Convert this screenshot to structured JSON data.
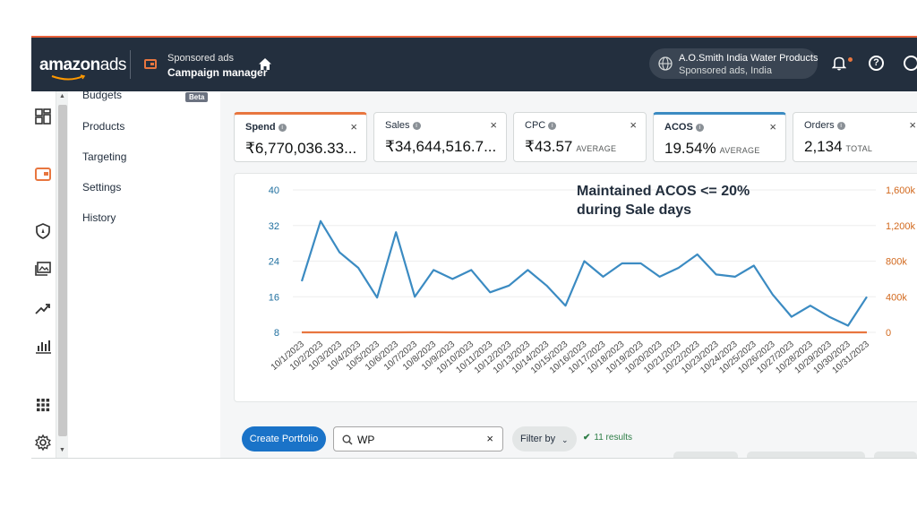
{
  "topbar": {
    "logo_main": "amazon",
    "logo_ads": "ads",
    "campaign_sub": "Sponsored ads",
    "campaign_title": "Campaign manager",
    "account_name": "A.O.Smith India Water Products",
    "account_sub": "Sponsored ads, India",
    "help_glyph": "?"
  },
  "rail": {
    "icons": [
      "dashboard-icon",
      "campaign-manager-icon",
      "shield-icon",
      "media-icon",
      "trend-icon",
      "bar-chart-icon",
      "apps-grid-icon",
      "settings-gear-icon"
    ],
    "scroll_up": "▲",
    "scroll_down": "▼"
  },
  "sidemenu": {
    "items": [
      "Budgets",
      "Products",
      "Targeting",
      "Settings",
      "History"
    ],
    "beta": "Beta"
  },
  "metrics": [
    {
      "name": "Spend",
      "value": "₹6,770,036.33...",
      "unit": "",
      "accent": "#e8763f"
    },
    {
      "name": "Sales",
      "value": "₹34,644,516.7...",
      "unit": "",
      "accent": ""
    },
    {
      "name": "CPC",
      "value": "₹43.57",
      "unit": "AVERAGE",
      "accent": ""
    },
    {
      "name": "ACOS",
      "value": "19.54%",
      "unit": "AVERAGE",
      "accent": "#3b8bc2"
    },
    {
      "name": "Orders",
      "value": "2,134",
      "unit": "TOTAL",
      "accent": ""
    }
  ],
  "metric_close": "×",
  "metric_info": "i",
  "annotation": {
    "line1": "Maintained ACOS <= 20%",
    "line2": "during Sale days"
  },
  "chart_data": {
    "type": "line",
    "x": [
      "10/1/2023",
      "10/2/2023",
      "10/3/2023",
      "10/4/2023",
      "10/5/2023",
      "10/6/2023",
      "10/7/2023",
      "10/8/2023",
      "10/9/2023",
      "10/10/2023",
      "10/11/2023",
      "10/12/2023",
      "10/13/2023",
      "10/14/2023",
      "10/15/2023",
      "10/16/2023",
      "10/17/2023",
      "10/18/2023",
      "10/19/2023",
      "10/20/2023",
      "10/21/2023",
      "10/22/2023",
      "10/23/2023",
      "10/24/2023",
      "10/25/2023",
      "10/26/2023",
      "10/27/2023",
      "10/28/2023",
      "10/29/2023",
      "10/30/2023",
      "10/31/2023"
    ],
    "series": [
      {
        "axis": "left",
        "color": "#3b8bc2",
        "values": [
          19.5,
          33,
          26,
          22.5,
          15.8,
          30.5,
          16,
          22,
          20,
          22,
          17,
          18.5,
          22,
          18.5,
          14,
          24,
          20.5,
          23.5,
          23.5,
          20.5,
          22.5,
          25.5,
          21,
          20.5,
          23,
          16.5,
          11.5,
          14,
          11.5,
          9.5,
          16
        ]
      },
      {
        "axis": "right",
        "color": "#e8763f",
        "values": [
          70,
          70,
          40,
          50,
          70,
          100,
          700,
          1200,
          470,
          360,
          300,
          270,
          220,
          190,
          270,
          180,
          140,
          160,
          120,
          130,
          150,
          150,
          120,
          140,
          120,
          80,
          30,
          50,
          40,
          30,
          30
        ]
      }
    ],
    "left_ticks": [
      "8",
      "16",
      "24",
      "32",
      "40"
    ],
    "right_ticks": [
      "0",
      "400k",
      "800k",
      "1,200k",
      "1,600k"
    ],
    "ylim_left": [
      8,
      40
    ],
    "ylim_right": [
      0,
      1600000
    ],
    "grid": "horizontal"
  },
  "toolbar": {
    "create_label": "Create Portfolio",
    "search_value": "WP",
    "clear_glyph": "×",
    "filter_label": "Filter by",
    "filter_chevron": "⌄",
    "results_check": "✔",
    "results_text": "11 results"
  }
}
